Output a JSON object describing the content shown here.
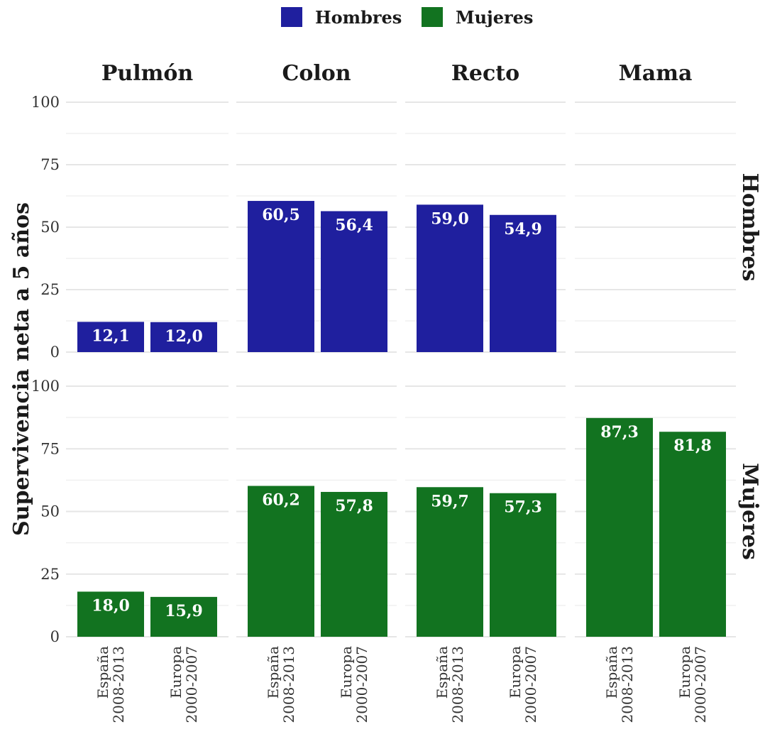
{
  "chart_data": {
    "type": "bar",
    "ylabel": "Supervivencia neta a 5 años",
    "xlabel": "",
    "ylim": [
      0,
      100
    ],
    "yticks": [
      0,
      25,
      50,
      75,
      100
    ],
    "grid": true,
    "legend_position": "top",
    "categories": [
      "España\n2008-2013",
      "Europa\n2000-2007"
    ],
    "facet_columns": [
      "Pulmón",
      "Colon",
      "Recto",
      "Mama"
    ],
    "series": [
      {
        "name": "Hombres",
        "color": "#1f1f9e",
        "values": {
          "Pulmón": [
            12.1,
            12.0
          ],
          "Colon": [
            60.5,
            56.4
          ],
          "Recto": [
            59.0,
            54.9
          ],
          "Mama": [
            null,
            null
          ]
        },
        "labels": {
          "Pulmón": [
            "12,1",
            "12,0"
          ],
          "Colon": [
            "60,5",
            "56,4"
          ],
          "Recto": [
            "59,0",
            "54,9"
          ],
          "Mama": [
            null,
            null
          ]
        }
      },
      {
        "name": "Mujeres",
        "color": "#127320",
        "values": {
          "Pulmón": [
            18.0,
            15.9
          ],
          "Colon": [
            60.2,
            57.8
          ],
          "Recto": [
            59.7,
            57.3
          ],
          "Mama": [
            87.3,
            81.8
          ]
        },
        "labels": {
          "Pulmón": [
            "18,0",
            "15,9"
          ],
          "Colon": [
            "60,2",
            "57,8"
          ],
          "Recto": [
            "59,7",
            "57,3"
          ],
          "Mama": [
            "87,3",
            "81,8"
          ]
        }
      }
    ]
  }
}
